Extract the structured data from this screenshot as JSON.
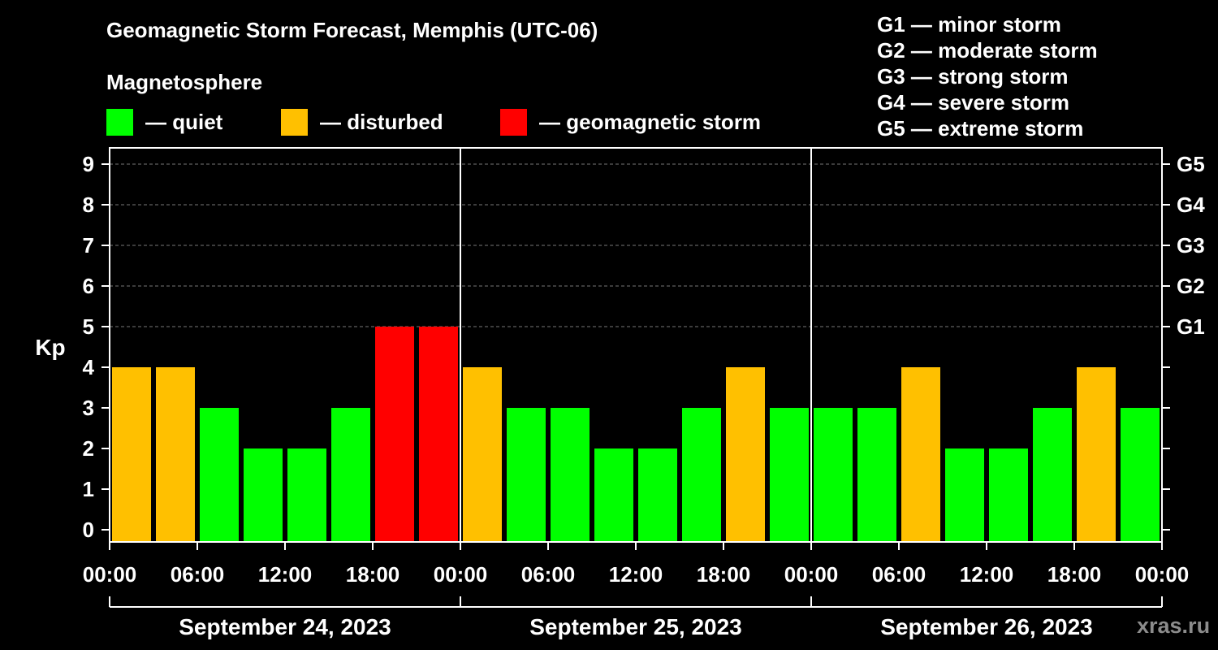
{
  "header": {
    "title": "Geomagnetic Storm Forecast, Memphis (UTC-06)",
    "subtitle": "Magnetosphere"
  },
  "legend": [
    {
      "label": "— quiet",
      "color": "#00ff00"
    },
    {
      "label": "— disturbed",
      "color": "#ffc000"
    },
    {
      "label": "— geomagnetic storm",
      "color": "#ff0000"
    }
  ],
  "storm_scale": [
    "G1 — minor storm",
    "G2 — moderate storm",
    "G3 — strong storm",
    "G4 — severe storm",
    "G5 — extreme storm"
  ],
  "watermark": "xras.ru",
  "chart_data": {
    "type": "bar",
    "ylabel": "Kp",
    "ylim": [
      0,
      9
    ],
    "yticks": [
      0,
      1,
      2,
      3,
      4,
      5,
      6,
      7,
      8,
      9
    ],
    "right_axis": [
      {
        "kp": 5,
        "label": "G1"
      },
      {
        "kp": 6,
        "label": "G2"
      },
      {
        "kp": 7,
        "label": "G3"
      },
      {
        "kp": 8,
        "label": "G4"
      },
      {
        "kp": 9,
        "label": "G5"
      }
    ],
    "x_tick_labels": [
      "00:00",
      "06:00",
      "12:00",
      "18:00",
      "00:00",
      "06:00",
      "12:00",
      "18:00",
      "00:00",
      "06:00",
      "12:00",
      "18:00",
      "00:00"
    ],
    "days": [
      {
        "label": "September 24, 2023",
        "values": [
          4,
          4,
          3,
          2,
          2,
          3,
          5,
          5
        ]
      },
      {
        "label": "September 25, 2023",
        "values": [
          4,
          3,
          3,
          2,
          2,
          3,
          4,
          3
        ]
      },
      {
        "label": "September 26, 2023",
        "values": [
          3,
          3,
          4,
          2,
          2,
          3,
          4,
          3
        ]
      }
    ],
    "colors": {
      "quiet": "#00ff00",
      "disturbed": "#ffc000",
      "storm": "#ff0000"
    },
    "grid": "dashed horizontal"
  }
}
